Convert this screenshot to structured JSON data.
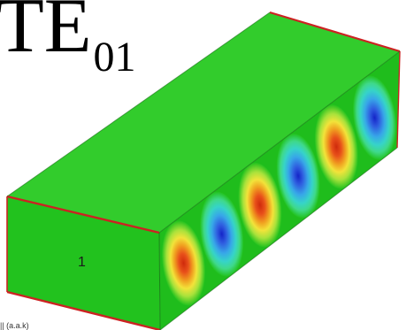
{
  "title": {
    "main": "TE",
    "subscript": "01"
  },
  "face_label": "1",
  "footer_caption": "|| (a.a.k)",
  "colors": {
    "background": "#ffffff",
    "box_face": "#22c21e",
    "top_face": "#32cc2c",
    "front_face": "#1fbd1c",
    "edge": "#cc2222",
    "positive_peak": "#d83a10",
    "negative_peak": "#1a2ecf"
  },
  "field_pattern": {
    "lobe_sequence": [
      "positive",
      "negative",
      "positive",
      "negative",
      "positive",
      "negative"
    ],
    "lobe_count": 6
  }
}
